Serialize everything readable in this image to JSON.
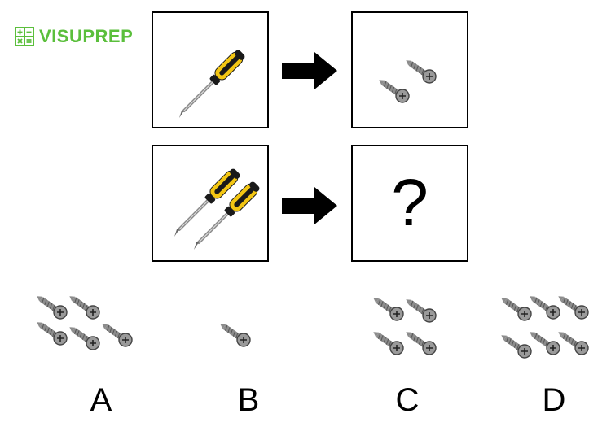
{
  "logo": {
    "text": "VISUPREP",
    "icon": "calculator-icon",
    "color": "#5bbf3c"
  },
  "question": {
    "row1": {
      "left": "screwdriver x1",
      "right": "screws x2"
    },
    "row2": {
      "left": "screwdriver x2",
      "right_label": "?"
    }
  },
  "options": [
    {
      "label": "A",
      "screws": 5
    },
    {
      "label": "B",
      "screws": 1
    },
    {
      "label": "C",
      "screws": 4
    },
    {
      "label": "D",
      "screws": 6
    }
  ],
  "colors": {
    "handle_yellow": "#f3c613",
    "handle_black": "#1a1a1a",
    "metal": "#9a9a9a",
    "arrow": "#000000"
  }
}
